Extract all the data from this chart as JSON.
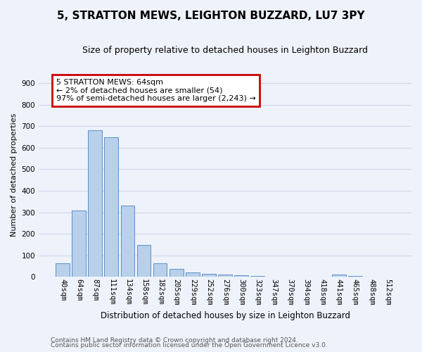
{
  "title": "5, STRATTON MEWS, LEIGHTON BUZZARD, LU7 3PY",
  "subtitle": "Size of property relative to detached houses in Leighton Buzzard",
  "xlabel": "Distribution of detached houses by size in Leighton Buzzard",
  "ylabel": "Number of detached properties",
  "footnote1": "Contains HM Land Registry data © Crown copyright and database right 2024.",
  "footnote2": "Contains public sector information licensed under the Open Government Licence v3.0.",
  "bar_labels": [
    "40sqm",
    "64sqm",
    "87sqm",
    "111sqm",
    "134sqm",
    "158sqm",
    "182sqm",
    "205sqm",
    "229sqm",
    "252sqm",
    "276sqm",
    "300sqm",
    "323sqm",
    "347sqm",
    "370sqm",
    "394sqm",
    "418sqm",
    "441sqm",
    "465sqm",
    "488sqm",
    "512sqm"
  ],
  "bar_values": [
    65,
    310,
    680,
    650,
    330,
    150,
    65,
    37,
    22,
    15,
    10,
    8,
    5,
    0,
    0,
    0,
    0,
    10,
    5,
    0,
    0
  ],
  "bar_color": "#b8d0ea",
  "bar_edge_color": "#5b8fc9",
  "ylim": [
    0,
    950
  ],
  "yticks": [
    0,
    100,
    200,
    300,
    400,
    500,
    600,
    700,
    800,
    900
  ],
  "annotation_line1": "5 STRATTON MEWS: 64sqm",
  "annotation_line2": "← 2% of detached houses are smaller (54)",
  "annotation_line3": "97% of semi-detached houses are larger (2,243) →",
  "annotation_box_color": "#cc0000",
  "grid_color": "#ccd6e8",
  "background_color": "#eef2fa",
  "title_fontsize": 11,
  "subtitle_fontsize": 9,
  "tick_fontsize": 7.5,
  "ylabel_fontsize": 8,
  "xlabel_fontsize": 8.5,
  "footnote_fontsize": 6.5
}
